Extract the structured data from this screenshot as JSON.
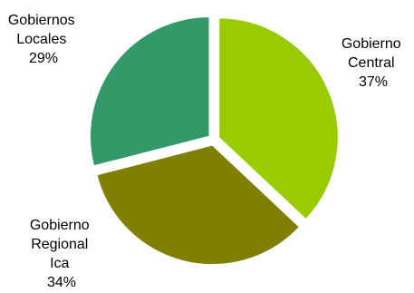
{
  "chart_data": {
    "type": "pie",
    "exploded": true,
    "start_angle_deg": 0,
    "direction": "clockwise",
    "legend": "none",
    "slices": [
      {
        "label_lines": [
          "Gobierno",
          "Central",
          "37%"
        ],
        "value": 37,
        "color": "#99cc00"
      },
      {
        "label_lines": [
          "Gobierno",
          "Regional",
          "Ica",
          "34%"
        ],
        "value": 34,
        "color": "#808000"
      },
      {
        "label_lines": [
          "Gobiernos",
          "Locales",
          "29%"
        ],
        "value": 29,
        "color": "#339966"
      }
    ]
  }
}
